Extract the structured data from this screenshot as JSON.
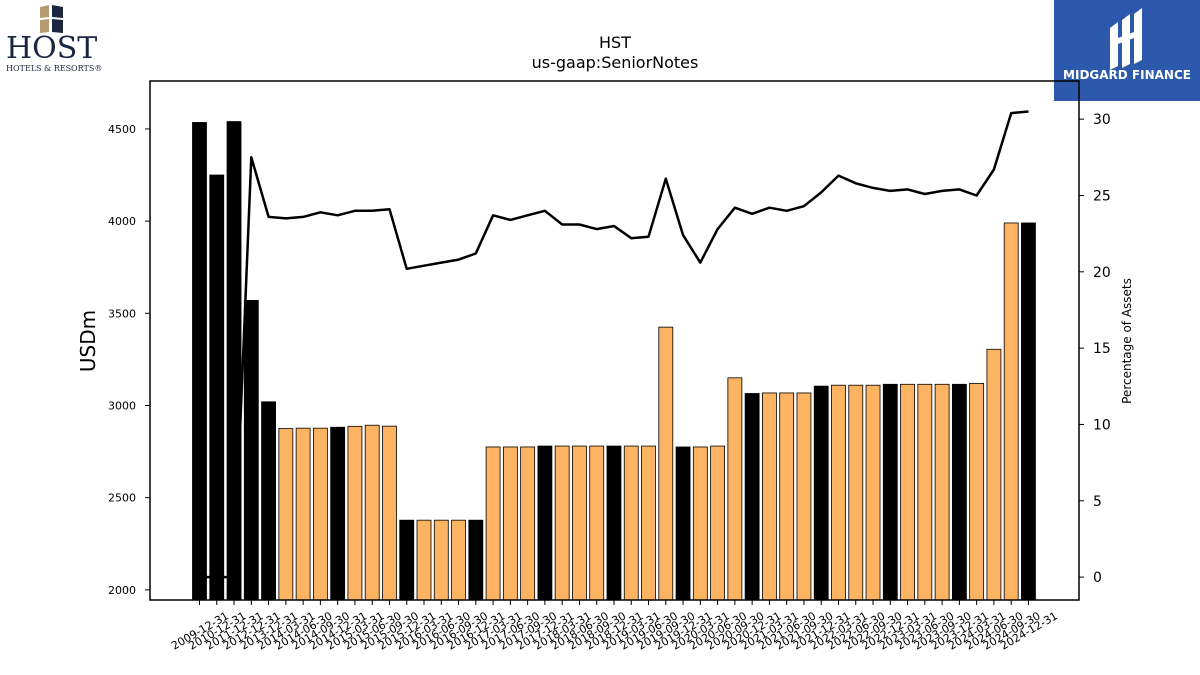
{
  "logos": {
    "host_word": "HOST",
    "host_sub": "HOTELS & RESORTS®",
    "midgard_name": "MIDGARD FINANCE"
  },
  "colors": {
    "bar_highlight": "#000000",
    "bar_normal": "#fdb462",
    "line": "#000000",
    "midgard_bg": "#2c59ab"
  },
  "chart_data": {
    "type": "bar",
    "title": "HST",
    "subtitle": "us-gaap:SeniorNotes",
    "ylabel": "USDm",
    "y2label": "Percentage of Assets",
    "ylim": [
      1945,
      4760
    ],
    "y2lim": [
      -1.5,
      32.5
    ],
    "yticks": [
      2000,
      2500,
      3000,
      3500,
      4000,
      4500
    ],
    "y2ticks": [
      0,
      5,
      10,
      15,
      20,
      25,
      30
    ],
    "categories": [
      "2009-12-31",
      "2010-12-31",
      "2011-12-31",
      "2012-12-31",
      "2013-12-31",
      "2014-03-31",
      "2014-06-30",
      "2014-09-30",
      "2014-12-31",
      "2015-03-31",
      "2015-06-30",
      "2015-09-30",
      "2015-12-31",
      "2016-03-31",
      "2016-06-30",
      "2016-09-30",
      "2016-12-31",
      "2017-03-31",
      "2017-06-30",
      "2017-09-30",
      "2017-12-31",
      "2018-03-31",
      "2018-06-30",
      "2018-09-30",
      "2018-12-31",
      "2019-03-31",
      "2019-06-30",
      "2019-09-30",
      "2019-12-31",
      "2020-03-31",
      "2020-06-30",
      "2020-09-30",
      "2020-12-31",
      "2021-03-31",
      "2021-06-30",
      "2021-09-30",
      "2021-12-31",
      "2022-03-31",
      "2022-06-30",
      "2022-09-30",
      "2022-12-31",
      "2023-03-31",
      "2023-06-30",
      "2023-09-30",
      "2023-12-31",
      "2024-03-31",
      "2024-06-30",
      "2024-09-30",
      "2024-12-31"
    ],
    "series": [
      {
        "type": "bar",
        "values": [
          4535,
          4250,
          4540,
          3570,
          3020,
          2875,
          2877,
          2877,
          2882,
          2887,
          2893,
          2888,
          2378,
          2378,
          2378,
          2378,
          2378,
          2775,
          2775,
          2775,
          2780,
          2780,
          2780,
          2780,
          2780,
          2780,
          2780,
          3425,
          2775,
          2775,
          2780,
          3150,
          3065,
          3068,
          3068,
          3068,
          3105,
          3110,
          3110,
          3110,
          3115,
          3115,
          3115,
          3115,
          3115,
          3120,
          3305,
          3990,
          3990
        ],
        "highlight": [
          true,
          true,
          true,
          true,
          true,
          false,
          false,
          false,
          true,
          false,
          false,
          false,
          true,
          false,
          false,
          false,
          true,
          false,
          false,
          false,
          true,
          false,
          false,
          false,
          true,
          false,
          false,
          false,
          true,
          false,
          false,
          false,
          true,
          false,
          false,
          false,
          true,
          false,
          false,
          false,
          true,
          false,
          false,
          false,
          true,
          false,
          false,
          false,
          true
        ]
      },
      {
        "type": "line",
        "axis": "right",
        "values": [
          0,
          0,
          0,
          27.5,
          23.6,
          23.5,
          23.6,
          23.9,
          23.7,
          24.0,
          24.0,
          24.1,
          20.2,
          20.4,
          20.6,
          20.8,
          21.2,
          23.7,
          23.4,
          23.7,
          24.0,
          23.1,
          23.1,
          22.8,
          23.0,
          22.2,
          22.3,
          26.1,
          22.4,
          20.6,
          22.8,
          24.2,
          23.8,
          24.2,
          24.0,
          24.3,
          25.2,
          26.3,
          25.8,
          25.5,
          25.3,
          25.4,
          25.1,
          25.3,
          25.4,
          25.0,
          26.7,
          30.4,
          30.5
        ]
      }
    ]
  }
}
